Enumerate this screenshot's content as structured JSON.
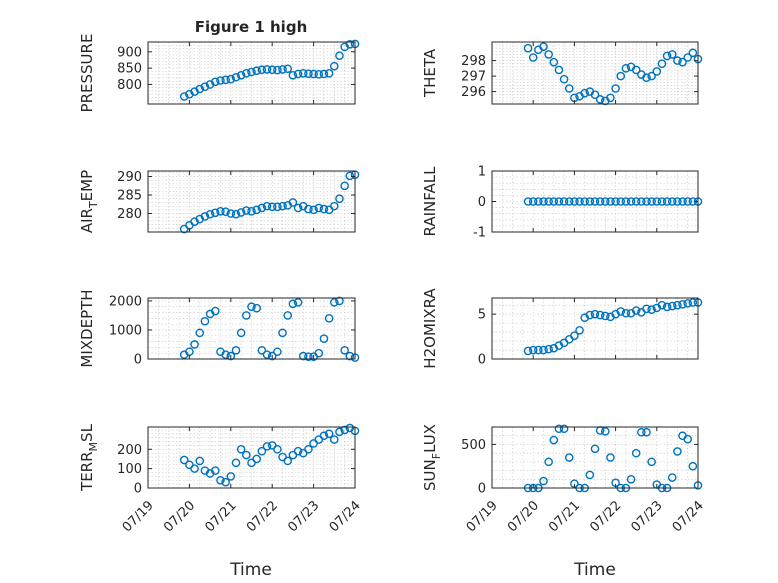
{
  "figure": {
    "title": "Figure 1 high",
    "xlabel": "Time"
  },
  "colors": {
    "marker": "#0072bd",
    "axis": "#262626",
    "grid": "#c8c8c8"
  },
  "x_ticks": [
    "07/19",
    "07/20",
    "07/21",
    "07/22",
    "07/23",
    "07/24"
  ],
  "chart_data": [
    {
      "type": "scatter",
      "ylabel": "PRESSURE",
      "title": "Figure 1 high",
      "xlim": [
        "07/19 00:00",
        "07/24 00:00"
      ],
      "ylim": [
        740,
        930
      ],
      "yticks": [
        800,
        850,
        900
      ],
      "grid": true,
      "x": [
        "07/19 21:00",
        "07/20 00:00",
        "07/20 03:00",
        "07/20 06:00",
        "07/20 09:00",
        "07/20 12:00",
        "07/20 15:00",
        "07/20 18:00",
        "07/20 21:00",
        "07/21 00:00",
        "07/21 03:00",
        "07/21 06:00",
        "07/21 09:00",
        "07/21 12:00",
        "07/21 15:00",
        "07/21 18:00",
        "07/21 21:00",
        "07/22 00:00",
        "07/22 03:00",
        "07/22 06:00",
        "07/22 09:00",
        "07/22 12:00",
        "07/22 15:00",
        "07/22 18:00",
        "07/22 21:00",
        "07/23 00:00",
        "07/23 03:00",
        "07/23 06:00",
        "07/23 09:00",
        "07/23 12:00",
        "07/23 15:00",
        "07/23 18:00",
        "07/23 21:00",
        "07/24 00:00"
      ],
      "y": [
        763,
        770,
        778,
        786,
        793,
        800,
        808,
        812,
        814,
        816,
        822,
        828,
        834,
        838,
        842,
        845,
        846,
        845,
        844,
        846,
        848,
        828,
        832,
        834,
        833,
        832,
        831,
        832,
        834,
        856,
        888,
        915,
        923,
        924
      ]
    },
    {
      "type": "scatter",
      "ylabel": "THETA",
      "xlim": [
        "07/19 00:00",
        "07/24 00:00"
      ],
      "ylim": [
        295.2,
        299.2
      ],
      "yticks": [
        296,
        297,
        298
      ],
      "grid": true,
      "x": [
        "07/19 21:00",
        "07/20 00:00",
        "07/20 03:00",
        "07/20 06:00",
        "07/20 09:00",
        "07/20 12:00",
        "07/20 15:00",
        "07/20 18:00",
        "07/20 21:00",
        "07/21 00:00",
        "07/21 03:00",
        "07/21 06:00",
        "07/21 09:00",
        "07/21 12:00",
        "07/21 15:00",
        "07/21 18:00",
        "07/21 21:00",
        "07/22 00:00",
        "07/22 03:00",
        "07/22 06:00",
        "07/22 09:00",
        "07/22 12:00",
        "07/22 15:00",
        "07/22 18:00",
        "07/22 21:00",
        "07/23 00:00",
        "07/23 03:00",
        "07/23 06:00",
        "07/23 09:00",
        "07/23 12:00",
        "07/23 15:00",
        "07/23 18:00",
        "07/23 21:00",
        "07/24 00:00"
      ],
      "y": [
        298.8,
        298.2,
        298.7,
        298.9,
        298.4,
        297.9,
        297.4,
        296.8,
        296.2,
        295.6,
        295.7,
        295.9,
        296.0,
        295.8,
        295.5,
        295.4,
        295.6,
        296.2,
        297.0,
        297.5,
        297.6,
        297.4,
        297.1,
        296.9,
        297.0,
        297.3,
        297.8,
        298.3,
        298.4,
        298.0,
        297.9,
        298.2,
        298.5,
        298.1
      ]
    },
    {
      "type": "scatter",
      "ylabel": "AIR_TEMP",
      "xlim": [
        "07/19 00:00",
        "07/24 00:00"
      ],
      "ylim": [
        275,
        291.5
      ],
      "yticks": [
        280,
        285,
        290
      ],
      "grid": true,
      "x": [
        "07/19 21:00",
        "07/20 00:00",
        "07/20 03:00",
        "07/20 06:00",
        "07/20 09:00",
        "07/20 12:00",
        "07/20 15:00",
        "07/20 18:00",
        "07/20 21:00",
        "07/21 00:00",
        "07/21 03:00",
        "07/21 06:00",
        "07/21 09:00",
        "07/21 12:00",
        "07/21 15:00",
        "07/21 18:00",
        "07/21 21:00",
        "07/22 00:00",
        "07/22 03:00",
        "07/22 06:00",
        "07/22 09:00",
        "07/22 12:00",
        "07/22 15:00",
        "07/22 18:00",
        "07/22 21:00",
        "07/23 00:00",
        "07/23 03:00",
        "07/23 06:00",
        "07/23 09:00",
        "07/23 12:00",
        "07/23 15:00",
        "07/23 18:00",
        "07/23 21:00",
        "07/24 00:00"
      ],
      "y": [
        275.8,
        276.8,
        277.8,
        278.5,
        279.2,
        279.8,
        280.2,
        280.6,
        280.5,
        280.0,
        279.8,
        280.3,
        280.8,
        280.6,
        281.0,
        281.5,
        282.0,
        281.8,
        281.8,
        282.0,
        282.2,
        283.0,
        281.5,
        282.0,
        281.2,
        281.0,
        281.5,
        281.2,
        281.0,
        282.0,
        284.0,
        287.5,
        290.2,
        290.5
      ]
    },
    {
      "type": "scatter",
      "ylabel": "RAINFALL",
      "xlim": [
        "07/19 00:00",
        "07/24 00:00"
      ],
      "ylim": [
        -1,
        1
      ],
      "yticks": [
        -1,
        0,
        1
      ],
      "grid": true,
      "x": [
        "07/19 21:00",
        "07/20 00:00",
        "07/20 03:00",
        "07/20 06:00",
        "07/20 09:00",
        "07/20 12:00",
        "07/20 15:00",
        "07/20 18:00",
        "07/20 21:00",
        "07/21 00:00",
        "07/21 03:00",
        "07/21 06:00",
        "07/21 09:00",
        "07/21 12:00",
        "07/21 15:00",
        "07/21 18:00",
        "07/21 21:00",
        "07/22 00:00",
        "07/22 03:00",
        "07/22 06:00",
        "07/22 09:00",
        "07/22 12:00",
        "07/22 15:00",
        "07/22 18:00",
        "07/22 21:00",
        "07/23 00:00",
        "07/23 03:00",
        "07/23 06:00",
        "07/23 09:00",
        "07/23 12:00",
        "07/23 15:00",
        "07/23 18:00",
        "07/23 21:00",
        "07/24 00:00"
      ],
      "y": [
        0,
        0,
        0,
        0,
        0,
        0,
        0,
        0,
        0,
        0,
        0,
        0,
        0,
        0,
        0,
        0,
        0,
        0,
        0,
        0,
        0,
        0,
        0,
        0,
        0,
        0,
        0,
        0,
        0,
        0,
        0,
        0,
        0,
        0
      ]
    },
    {
      "type": "scatter",
      "ylabel": "MIXDEPTH",
      "xlim": [
        "07/19 00:00",
        "07/24 00:00"
      ],
      "ylim": [
        0,
        2100
      ],
      "yticks": [
        0,
        1000,
        2000
      ],
      "grid": true,
      "x": [
        "07/19 21:00",
        "07/20 00:00",
        "07/20 03:00",
        "07/20 06:00",
        "07/20 09:00",
        "07/20 12:00",
        "07/20 15:00",
        "07/20 18:00",
        "07/20 21:00",
        "07/21 00:00",
        "07/21 03:00",
        "07/21 06:00",
        "07/21 09:00",
        "07/21 12:00",
        "07/21 15:00",
        "07/21 18:00",
        "07/21 21:00",
        "07/22 00:00",
        "07/22 03:00",
        "07/22 06:00",
        "07/22 09:00",
        "07/22 12:00",
        "07/22 15:00",
        "07/22 18:00",
        "07/22 21:00",
        "07/23 00:00",
        "07/23 03:00",
        "07/23 06:00",
        "07/23 09:00",
        "07/23 12:00",
        "07/23 15:00",
        "07/23 18:00",
        "07/23 21:00",
        "07/24 00:00"
      ],
      "y": [
        150,
        250,
        500,
        900,
        1300,
        1550,
        1650,
        250,
        150,
        100,
        300,
        900,
        1500,
        1800,
        1750,
        300,
        150,
        100,
        250,
        900,
        1500,
        1900,
        1950,
        100,
        80,
        80,
        200,
        700,
        1400,
        1950,
        2000,
        300,
        100,
        50
      ]
    },
    {
      "type": "scatter",
      "ylabel": "H2OMIXRA",
      "xlim": [
        "07/19 00:00",
        "07/24 00:00"
      ],
      "ylim": [
        0,
        6.8
      ],
      "yticks": [
        0,
        5
      ],
      "grid": true,
      "x": [
        "07/19 21:00",
        "07/20 00:00",
        "07/20 03:00",
        "07/20 06:00",
        "07/20 09:00",
        "07/20 12:00",
        "07/20 15:00",
        "07/20 18:00",
        "07/20 21:00",
        "07/21 00:00",
        "07/21 03:00",
        "07/21 06:00",
        "07/21 09:00",
        "07/21 12:00",
        "07/21 15:00",
        "07/21 18:00",
        "07/21 21:00",
        "07/22 00:00",
        "07/22 03:00",
        "07/22 06:00",
        "07/22 09:00",
        "07/22 12:00",
        "07/22 15:00",
        "07/22 18:00",
        "07/22 21:00",
        "07/23 00:00",
        "07/23 03:00",
        "07/23 06:00",
        "07/23 09:00",
        "07/23 12:00",
        "07/23 15:00",
        "07/23 18:00",
        "07/23 21:00",
        "07/24 00:00"
      ],
      "y": [
        0.9,
        1.0,
        1.0,
        1.0,
        1.1,
        1.2,
        1.5,
        1.8,
        2.2,
        2.6,
        3.2,
        4.6,
        4.9,
        5.0,
        4.9,
        4.8,
        4.7,
        5.0,
        5.3,
        5.1,
        5.1,
        5.4,
        5.2,
        5.6,
        5.5,
        5.7,
        6.0,
        5.8,
        5.9,
        6.0,
        6.1,
        6.2,
        6.3,
        6.3
      ]
    },
    {
      "type": "scatter",
      "ylabel": "TERR_MSL",
      "xlim": [
        "07/19 00:00",
        "07/24 00:00"
      ],
      "ylim": [
        0,
        315
      ],
      "yticks": [
        0,
        100,
        200
      ],
      "grid": true,
      "x": [
        "07/19 21:00",
        "07/20 00:00",
        "07/20 03:00",
        "07/20 06:00",
        "07/20 09:00",
        "07/20 12:00",
        "07/20 15:00",
        "07/20 18:00",
        "07/20 21:00",
        "07/21 00:00",
        "07/21 03:00",
        "07/21 06:00",
        "07/21 09:00",
        "07/21 12:00",
        "07/21 15:00",
        "07/21 18:00",
        "07/21 21:00",
        "07/22 00:00",
        "07/22 03:00",
        "07/22 06:00",
        "07/22 09:00",
        "07/22 12:00",
        "07/22 15:00",
        "07/22 18:00",
        "07/22 21:00",
        "07/23 00:00",
        "07/23 03:00",
        "07/23 06:00",
        "07/23 09:00",
        "07/23 12:00",
        "07/23 15:00",
        "07/23 18:00",
        "07/23 21:00",
        "07/24 00:00"
      ],
      "y": [
        145,
        120,
        100,
        140,
        90,
        75,
        90,
        40,
        30,
        60,
        130,
        200,
        170,
        130,
        150,
        190,
        215,
        220,
        200,
        160,
        140,
        170,
        190,
        180,
        200,
        230,
        250,
        270,
        280,
        250,
        290,
        300,
        310,
        295
      ]
    },
    {
      "type": "scatter",
      "ylabel": "SUN_FLUX",
      "xlim": [
        "07/19 00:00",
        "07/24 00:00"
      ],
      "ylim": [
        0,
        700
      ],
      "yticks": [
        0,
        500
      ],
      "grid": true,
      "x": [
        "07/19 21:00",
        "07/20 00:00",
        "07/20 03:00",
        "07/20 06:00",
        "07/20 09:00",
        "07/20 12:00",
        "07/20 15:00",
        "07/20 18:00",
        "07/20 21:00",
        "07/21 00:00",
        "07/21 03:00",
        "07/21 06:00",
        "07/21 09:00",
        "07/21 12:00",
        "07/21 15:00",
        "07/21 18:00",
        "07/21 21:00",
        "07/22 00:00",
        "07/22 03:00",
        "07/22 06:00",
        "07/22 09:00",
        "07/22 12:00",
        "07/22 15:00",
        "07/22 18:00",
        "07/22 21:00",
        "07/23 00:00",
        "07/23 03:00",
        "07/23 06:00",
        "07/23 09:00",
        "07/23 12:00",
        "07/23 15:00",
        "07/23 18:00",
        "07/23 21:00",
        "07/24 00:00"
      ],
      "y": [
        0,
        0,
        0,
        80,
        300,
        550,
        680,
        680,
        350,
        50,
        0,
        0,
        150,
        450,
        660,
        650,
        350,
        60,
        0,
        0,
        100,
        400,
        640,
        640,
        300,
        40,
        0,
        0,
        120,
        420,
        600,
        560,
        250,
        30
      ]
    }
  ]
}
